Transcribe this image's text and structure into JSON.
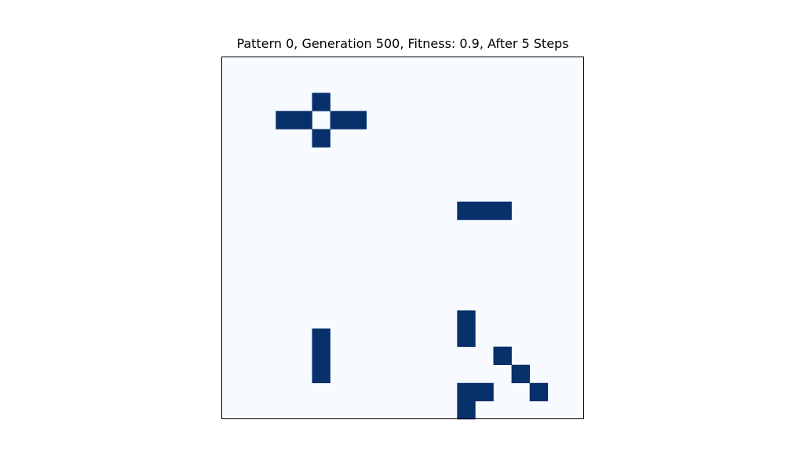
{
  "colors": {
    "background": "#f7fbff",
    "alive": "#08306b",
    "frame": "#000000"
  },
  "chart_data": {
    "type": "heatmap",
    "title": "Pattern 0, Generation 500, Fitness: 0.9, After 5 Steps",
    "xlabel": "",
    "ylabel": "",
    "colormap": "Blues",
    "axes_ticks": false,
    "grid": false,
    "rows": 20,
    "cols": 20,
    "cell_values": [
      0,
      1
    ],
    "alive_cells": [
      [
        2,
        5
      ],
      [
        3,
        3
      ],
      [
        3,
        4
      ],
      [
        3,
        6
      ],
      [
        3,
        7
      ],
      [
        4,
        5
      ],
      [
        8,
        13
      ],
      [
        8,
        14
      ],
      [
        8,
        15
      ],
      [
        14,
        13
      ],
      [
        15,
        5
      ],
      [
        15,
        13
      ],
      [
        16,
        5
      ],
      [
        16,
        15
      ],
      [
        17,
        5
      ],
      [
        17,
        16
      ],
      [
        18,
        13
      ],
      [
        18,
        14
      ],
      [
        18,
        17
      ],
      [
        19,
        13
      ]
    ]
  }
}
